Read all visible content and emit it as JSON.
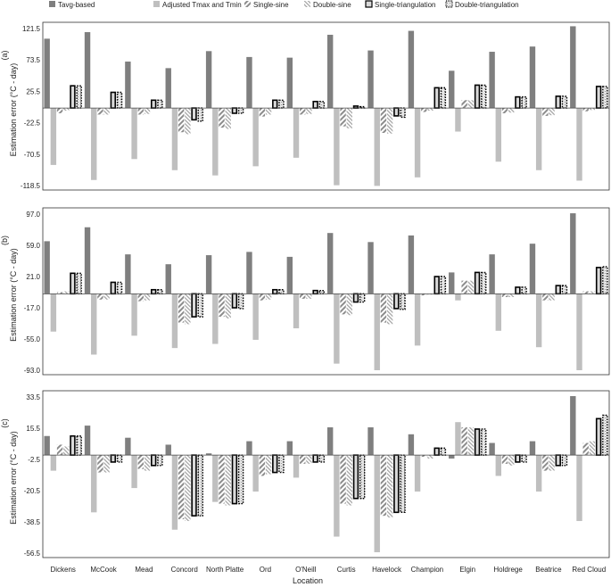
{
  "legend": [
    {
      "name": "Tavg-based",
      "style": "tavg"
    },
    {
      "name": "Adjusted Tmax and Tmin",
      "style": "adj"
    },
    {
      "name": "Single-sine",
      "style": "ssine"
    },
    {
      "name": "Double-sine",
      "style": "dsine"
    },
    {
      "name": "Single-triangulation",
      "style": "stri"
    },
    {
      "name": "Double-triangulation",
      "style": "dtri"
    }
  ],
  "colors": {
    "tavg": "#7f7f7f",
    "adj": "#bfbfbf",
    "ssine": "#a6a6a6",
    "dsine": "#c8c8c8",
    "tri_fill": "#d9d9d9",
    "border": "#000000"
  },
  "xlabel": "Location",
  "chart_data": [
    {
      "type": "bar",
      "panel_label": "(a)",
      "ylabel": "Estimation  error  (°C - day)",
      "ylim": [
        -118.5,
        121.5
      ],
      "yticks": [
        "121.5",
        "73.5",
        "25.5",
        "-22.5",
        "-70.5",
        "-118.5"
      ],
      "categories": [
        "Dickens",
        "McCook",
        "Mead",
        "Concord",
        "North Platte",
        "Ord",
        "O'Neill",
        "Curtis",
        "Havelock",
        "Champion",
        "Elgin",
        "Holdrege",
        "Beatrice",
        "Red Cloud"
      ],
      "series": [
        {
          "name": "Tavg-based",
          "values": [
            106,
            116,
            71,
            61,
            87,
            78,
            77,
            112,
            88,
            118,
            57,
            86,
            94,
            125
          ]
        },
        {
          "name": "Adjusted Tmax and Tmin",
          "values": [
            -87,
            -110,
            -78,
            -95,
            -103,
            -89,
            -76,
            -118,
            -119,
            -106,
            -36,
            -82,
            -95,
            -111
          ]
        },
        {
          "name": "Single-sine",
          "values": [
            -8,
            -10,
            -10,
            -37,
            -30,
            -13,
            -10,
            -28,
            -38,
            -6,
            12,
            -8,
            -12,
            -5
          ]
        },
        {
          "name": "Double-sine",
          "values": [
            -4,
            -10,
            -9,
            -40,
            -32,
            -10,
            -9,
            -31,
            -39,
            -4,
            12,
            -7,
            -11,
            -3
          ]
        },
        {
          "name": "Single-triangulation",
          "values": [
            34,
            24,
            12,
            -18,
            -8,
            12,
            10,
            3,
            -12,
            31,
            35,
            17,
            18,
            33
          ]
        },
        {
          "name": "Double-triangulation",
          "values": [
            34,
            24,
            12,
            -20,
            -8,
            12,
            10,
            2,
            -14,
            31,
            35,
            17,
            18,
            33
          ]
        }
      ]
    },
    {
      "type": "bar",
      "panel_label": "(b)",
      "ylabel": "Estimation  error  (°C - day)",
      "ylim": [
        -93.0,
        97.0
      ],
      "yticks": [
        "97.0",
        "59.0",
        "21.0",
        "-17.0",
        "-55.0",
        "-93.0"
      ],
      "categories": [
        "Dickens",
        "McCook",
        "Mead",
        "Concord",
        "North Platte",
        "Ord",
        "O'Neill",
        "Curtis",
        "Havelock",
        "Champion",
        "Elgin",
        "Holdrege",
        "Beatrice",
        "Red Cloud"
      ],
      "series": [
        {
          "name": "Tavg-based",
          "values": [
            64,
            81,
            48,
            36,
            47,
            51,
            45,
            74,
            63,
            71,
            26,
            48,
            61,
            98
          ]
        },
        {
          "name": "Adjusted Tmax and Tmin",
          "values": [
            -46,
            -74,
            -51,
            -66,
            -61,
            -56,
            -42,
            -85,
            -93,
            -63,
            -8,
            -45,
            -65,
            -93
          ]
        },
        {
          "name": "Single-sine",
          "values": [
            2,
            -7,
            -9,
            -35,
            -28,
            -8,
            -6,
            -25,
            -35,
            -2,
            16,
            -4,
            -8,
            3
          ]
        },
        {
          "name": "Double-sine",
          "values": [
            3,
            -7,
            -8,
            -37,
            -30,
            -7,
            -6,
            -26,
            -37,
            -1,
            16,
            -4,
            -8,
            3
          ]
        },
        {
          "name": "Single-triangulation",
          "values": [
            25,
            14,
            5,
            -28,
            -17,
            5,
            4,
            -10,
            -18,
            21,
            26,
            8,
            10,
            32
          ]
        },
        {
          "name": "Double-triangulation",
          "values": [
            25,
            14,
            5,
            -28,
            -18,
            5,
            4,
            -10,
            -19,
            21,
            26,
            8,
            10,
            33
          ]
        }
      ]
    },
    {
      "type": "bar",
      "panel_label": "(c)",
      "ylabel": "Estimation  error  (°C - day)",
      "ylim": [
        -56.5,
        33.5
      ],
      "yticks": [
        "33.5",
        "15.5",
        "-2.5",
        "-20.5",
        "-38.5",
        "-56.5"
      ],
      "categories": [
        "Dickens",
        "McCook",
        "Mead",
        "Concord",
        "North Platte",
        "Ord",
        "O'Neill",
        "Curtis",
        "Havelock",
        "Champion",
        "Elgin",
        "Holdrege",
        "Beatrice",
        "Red Cloud"
      ],
      "series": [
        {
          "name": "Tavg-based",
          "values": [
            11,
            17,
            10,
            6,
            1,
            8,
            8,
            16,
            16,
            12,
            -2,
            7,
            8,
            34
          ]
        },
        {
          "name": "Adjusted Tmax and Tmin",
          "values": [
            -9,
            -33,
            -19,
            -43,
            -27,
            -21,
            -13,
            -47,
            -56,
            -21,
            19,
            -12,
            -21,
            -38
          ]
        },
        {
          "name": "Single-sine",
          "values": [
            6,
            -10,
            -8,
            -37,
            -28,
            -12,
            -5,
            -28,
            -35,
            -1,
            16,
            -5,
            -9,
            7
          ]
        },
        {
          "name": "Double-sine",
          "values": [
            5,
            -10,
            -9,
            -38,
            -29,
            -11,
            -5,
            -29,
            -36,
            -2,
            16,
            -6,
            -9,
            8
          ]
        },
        {
          "name": "Single-triangulation",
          "values": [
            11,
            -4,
            -6,
            -35,
            -28,
            -10,
            -4,
            -25,
            -33,
            4,
            15,
            -4,
            -6,
            21
          ]
        },
        {
          "name": "Double-triangulation",
          "values": [
            11,
            -4,
            -6,
            -35,
            -28,
            -10,
            -4,
            -25,
            -33,
            4,
            15,
            -4,
            -6,
            23
          ]
        }
      ]
    }
  ]
}
